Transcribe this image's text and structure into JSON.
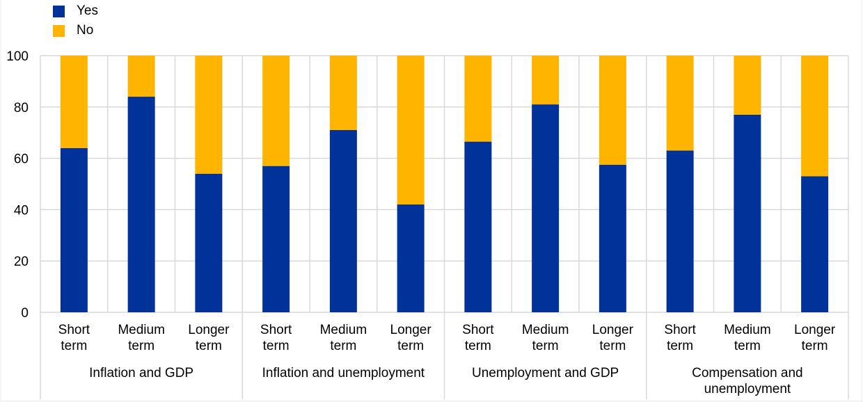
{
  "chart_data": {
    "type": "bar",
    "stacked": true,
    "title": "",
    "xlabel": "",
    "ylabel": "",
    "ylim": [
      0,
      100
    ],
    "yticks": [
      0,
      20,
      40,
      60,
      80,
      100
    ],
    "grid": true,
    "legend_position": "top-left",
    "groups": [
      {
        "label": "Inflation and GDP",
        "lines": [
          "Inflation and GDP"
        ]
      },
      {
        "label": "Inflation and unemployment",
        "lines": [
          "Inflation and unemployment"
        ]
      },
      {
        "label": "Unemployment and GDP",
        "lines": [
          "Unemployment and GDP"
        ]
      },
      {
        "label": "Compensation and unemployment",
        "lines": [
          "Compensation and",
          "unemployment"
        ]
      }
    ],
    "categories": [
      {
        "label": "Short term",
        "lines": [
          "Short",
          "term"
        ]
      },
      {
        "label": "Medium term",
        "lines": [
          "Medium",
          "term"
        ]
      },
      {
        "label": "Longer term",
        "lines": [
          "Longer",
          "term"
        ]
      },
      {
        "label": "Short term",
        "lines": [
          "Short",
          "term"
        ]
      },
      {
        "label": "Medium term",
        "lines": [
          "Medium",
          "term"
        ]
      },
      {
        "label": "Longer term",
        "lines": [
          "Longer",
          "term"
        ]
      },
      {
        "label": "Short term",
        "lines": [
          "Short",
          "term"
        ]
      },
      {
        "label": "Medium term",
        "lines": [
          "Medium",
          "term"
        ]
      },
      {
        "label": "Longer term",
        "lines": [
          "Longer",
          "term"
        ]
      },
      {
        "label": "Short term",
        "lines": [
          "Short",
          "term"
        ]
      },
      {
        "label": "Medium term",
        "lines": [
          "Medium",
          "term"
        ]
      },
      {
        "label": "Longer term",
        "lines": [
          "Longer",
          "term"
        ]
      }
    ],
    "series": [
      {
        "name": "Yes",
        "color": "#003299",
        "values": [
          64,
          84,
          54,
          57,
          71,
          42,
          66.5,
          81,
          57.5,
          63,
          77,
          53
        ]
      },
      {
        "name": "No",
        "color": "#FFB400",
        "values": [
          36,
          16,
          46,
          43,
          29,
          58,
          33.5,
          19,
          42.5,
          37,
          23,
          47
        ]
      }
    ]
  }
}
